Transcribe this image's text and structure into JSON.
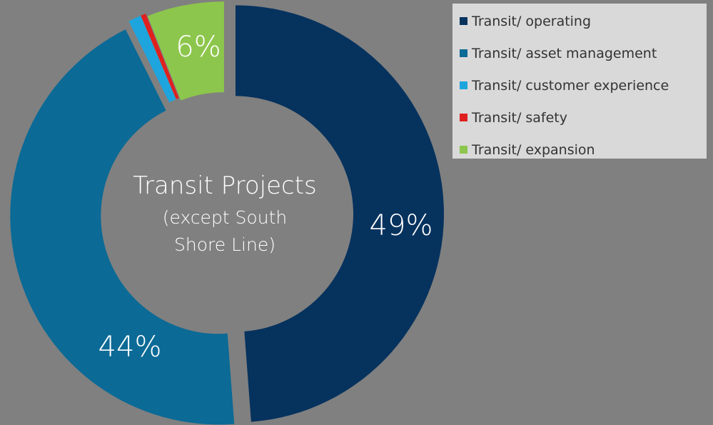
{
  "chart_data": {
    "type": "donut",
    "center_title": "Transit Projects",
    "center_subtitle": "(except South Shore Line)",
    "categories": [
      "Transit/ operating",
      "Transit/ asset management",
      "Transit/ customer experience",
      "Transit/ safety",
      "Transit/ expansion"
    ],
    "values": [
      49,
      44,
      1,
      0.4,
      6
    ],
    "value_labels": [
      "49%",
      "44%",
      null,
      null,
      "6%"
    ],
    "colors": [
      "#06325e",
      "#0b6a96",
      "#1ea5de",
      "#e0201f",
      "#8dc64c"
    ],
    "legend": "top-right"
  }
}
